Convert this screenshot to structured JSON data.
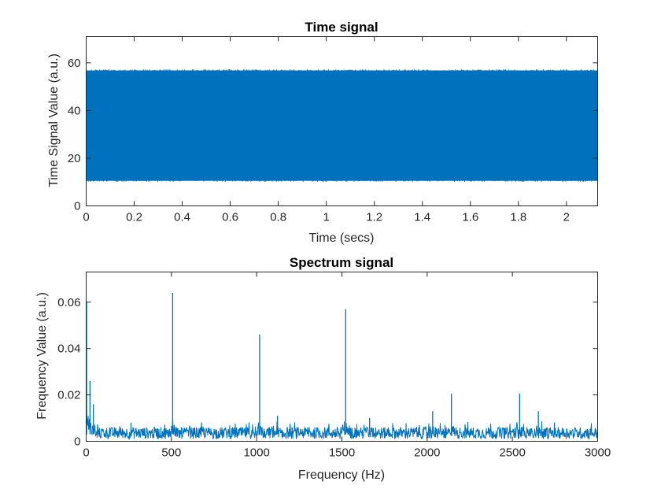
{
  "chart_data": [
    {
      "type": "line",
      "title": "Time signal",
      "xlabel": "Time (secs)",
      "ylabel": "Time Signal Value (a.u.)",
      "xlim": [
        0,
        2.13
      ],
      "ylim": [
        0,
        71
      ],
      "x_ticks": [
        "0",
        "0.2",
        "0.4",
        "0.6",
        "0.8",
        "1",
        "1.2",
        "1.4",
        "1.6",
        "1.8",
        "2"
      ],
      "x_tick_values": [
        0,
        0.2,
        0.4,
        0.6,
        0.8,
        1.0,
        1.2,
        1.4,
        1.6,
        1.8,
        2.0
      ],
      "y_ticks": [
        "0",
        "20",
        "40",
        "60"
      ],
      "y_tick_values": [
        0,
        20,
        40,
        60
      ],
      "series_color": "#0072BD",
      "band": {
        "x_start": 0,
        "x_end": 2.13,
        "min": 10.5,
        "max": 56.8
      },
      "grid": false,
      "legend": "none"
    },
    {
      "type": "line",
      "title": "Spectrum signal",
      "xlabel": "Frequency (Hz)",
      "ylabel": "Frequency Value (a.u.)",
      "xlim": [
        0,
        3000
      ],
      "ylim": [
        0,
        0.073
      ],
      "x_ticks": [
        "0",
        "500",
        "1000",
        "1500",
        "2000",
        "2500",
        "3000"
      ],
      "x_tick_values": [
        0,
        500,
        1000,
        1500,
        2000,
        2500,
        3000
      ],
      "y_ticks": [
        "0",
        "0.02",
        "0.04",
        "0.06"
      ],
      "y_tick_values": [
        0,
        0.02,
        0.04,
        0.06
      ],
      "series_color": "#0072BD",
      "noise_floor": {
        "x_start": 0,
        "x_end": 3000,
        "min": 0.001,
        "max": 0.007
      },
      "peaks": [
        {
          "x": 0,
          "y": 0.06
        },
        {
          "x": 20,
          "y": 0.026
        },
        {
          "x": 40,
          "y": 0.016
        },
        {
          "x": 505,
          "y": 0.064
        },
        {
          "x": 1015,
          "y": 0.046
        },
        {
          "x": 1120,
          "y": 0.011
        },
        {
          "x": 1520,
          "y": 0.057
        },
        {
          "x": 1660,
          "y": 0.01
        },
        {
          "x": 2030,
          "y": 0.013
        },
        {
          "x": 2140,
          "y": 0.0205
        },
        {
          "x": 2540,
          "y": 0.0205
        },
        {
          "x": 2650,
          "y": 0.013
        }
      ],
      "grid": false,
      "legend": "none"
    }
  ]
}
